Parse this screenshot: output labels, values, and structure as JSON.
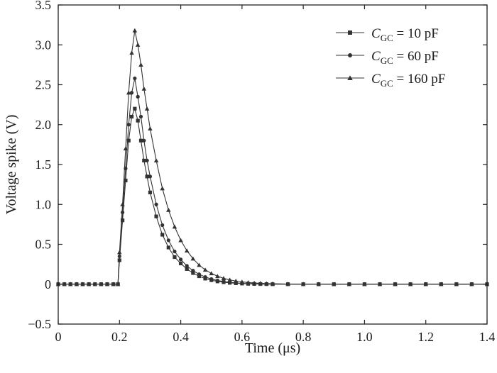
{
  "chart_data": {
    "type": "line",
    "title": "",
    "xlabel": "Time (μs)",
    "ylabel": "Voltage spike (V)",
    "xlim": [
      0,
      1.4
    ],
    "ylim": [
      -0.5,
      3.5
    ],
    "xticks": [
      "0",
      "0.2",
      "0.4",
      "0.6",
      "0.8",
      "1.0",
      "1.2",
      "1.4"
    ],
    "yticks": [
      "−0.5",
      "0",
      "0.5",
      "1.0",
      "1.5",
      "2.0",
      "2.5",
      "3.0",
      "3.5"
    ],
    "grid": false,
    "legend_position": "top-right",
    "line_color": "#333333",
    "series": [
      {
        "name": "C_GC = 10 pF",
        "legend": {
          "symbol": "C",
          "sub": "GC",
          "rest": " = 10 pF"
        },
        "marker": "square",
        "x": [
          0,
          0.02,
          0.04,
          0.06,
          0.08,
          0.1,
          0.12,
          0.14,
          0.16,
          0.18,
          0.195,
          0.2,
          0.21,
          0.22,
          0.23,
          0.24,
          0.25,
          0.26,
          0.27,
          0.28,
          0.29,
          0.3,
          0.32,
          0.34,
          0.36,
          0.38,
          0.4,
          0.42,
          0.44,
          0.46,
          0.48,
          0.5,
          0.52,
          0.54,
          0.56,
          0.58,
          0.6,
          0.62,
          0.64,
          0.66,
          0.68,
          0.7,
          0.75,
          0.8,
          0.85,
          0.9,
          0.95,
          1.0,
          1.05,
          1.1,
          1.15,
          1.2,
          1.25,
          1.3,
          1.35,
          1.4
        ],
        "y": [
          0,
          0,
          0,
          0,
          0,
          0,
          0,
          0,
          0,
          0,
          0,
          0.3,
          0.8,
          1.3,
          1.8,
          2.1,
          2.2,
          2.05,
          1.8,
          1.55,
          1.35,
          1.15,
          0.85,
          0.62,
          0.46,
          0.34,
          0.26,
          0.19,
          0.14,
          0.1,
          0.07,
          0.05,
          0.035,
          0.025,
          0.017,
          0.012,
          0.008,
          0.005,
          0.003,
          0.002,
          0.001,
          0,
          0,
          0,
          0,
          0,
          0,
          0,
          0,
          0,
          0,
          0,
          0,
          0,
          0,
          0
        ]
      },
      {
        "name": "C_GC = 60 pF",
        "legend": {
          "symbol": "C",
          "sub": "GC",
          "rest": " = 60 pF"
        },
        "marker": "circle",
        "x": [
          0,
          0.02,
          0.04,
          0.06,
          0.08,
          0.1,
          0.12,
          0.14,
          0.16,
          0.18,
          0.195,
          0.2,
          0.21,
          0.22,
          0.23,
          0.24,
          0.25,
          0.26,
          0.27,
          0.28,
          0.29,
          0.3,
          0.32,
          0.34,
          0.36,
          0.38,
          0.4,
          0.42,
          0.44,
          0.46,
          0.48,
          0.5,
          0.52,
          0.54,
          0.56,
          0.58,
          0.6,
          0.62,
          0.64,
          0.66,
          0.68,
          0.7,
          0.75,
          0.8,
          0.85,
          0.9,
          0.95,
          1.0,
          1.05,
          1.1,
          1.15,
          1.2,
          1.25,
          1.3,
          1.35,
          1.4
        ],
        "y": [
          0,
          0,
          0,
          0,
          0,
          0,
          0,
          0,
          0,
          0,
          0,
          0.35,
          0.9,
          1.45,
          2.0,
          2.4,
          2.58,
          2.35,
          2.1,
          1.8,
          1.55,
          1.35,
          1.0,
          0.74,
          0.55,
          0.41,
          0.31,
          0.23,
          0.17,
          0.125,
          0.09,
          0.065,
          0.046,
          0.033,
          0.023,
          0.016,
          0.011,
          0.007,
          0.005,
          0.003,
          0.002,
          0.001,
          0,
          0,
          0,
          0,
          0,
          0,
          0,
          0,
          0,
          0,
          0,
          0,
          0,
          0
        ]
      },
      {
        "name": "C_GC = 160 pF",
        "legend": {
          "symbol": "C",
          "sub": "GC",
          "rest": " = 160 pF"
        },
        "marker": "triangle",
        "x": [
          0,
          0.02,
          0.04,
          0.06,
          0.08,
          0.1,
          0.12,
          0.14,
          0.16,
          0.18,
          0.195,
          0.2,
          0.21,
          0.22,
          0.23,
          0.24,
          0.25,
          0.26,
          0.27,
          0.28,
          0.29,
          0.3,
          0.32,
          0.34,
          0.36,
          0.38,
          0.4,
          0.42,
          0.44,
          0.46,
          0.48,
          0.5,
          0.52,
          0.54,
          0.56,
          0.58,
          0.6,
          0.62,
          0.64,
          0.66,
          0.68,
          0.7,
          0.75,
          0.8,
          0.85,
          0.9,
          0.95,
          1.0,
          1.05,
          1.1,
          1.15,
          1.2,
          1.25,
          1.3,
          1.35,
          1.4
        ],
        "y": [
          0,
          0,
          0,
          0,
          0,
          0,
          0,
          0,
          0,
          0,
          0,
          0.4,
          1.0,
          1.7,
          2.4,
          2.9,
          3.18,
          3.0,
          2.75,
          2.45,
          2.2,
          1.95,
          1.55,
          1.2,
          0.93,
          0.72,
          0.55,
          0.42,
          0.32,
          0.24,
          0.18,
          0.135,
          0.1,
          0.074,
          0.054,
          0.04,
          0.029,
          0.021,
          0.015,
          0.011,
          0.008,
          0.006,
          0.002,
          0.001,
          0,
          0,
          0,
          0,
          0,
          0,
          0,
          0,
          0,
          0,
          0,
          0
        ]
      }
    ]
  }
}
